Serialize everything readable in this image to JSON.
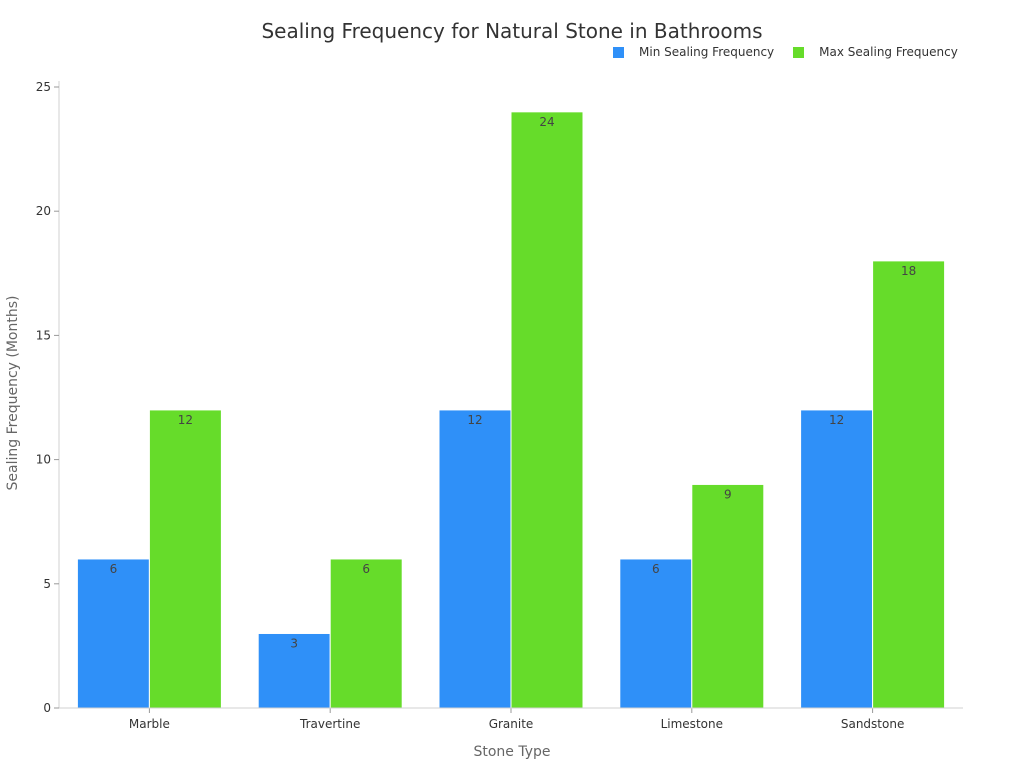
{
  "chart_data": {
    "type": "bar",
    "title": "Sealing Frequency for Natural Stone in Bathrooms",
    "xlabel": "Stone Type",
    "ylabel": "Sealing Frequency (Months)",
    "categories": [
      "Marble",
      "Travertine",
      "Granite",
      "Limestone",
      "Sandstone"
    ],
    "series": [
      {
        "name": "Min Sealing Frequency",
        "color": "#2f90f8",
        "values": [
          6,
          3,
          12,
          6,
          12
        ]
      },
      {
        "name": "Max Sealing Frequency",
        "color": "#66dc2a",
        "values": [
          12,
          6,
          24,
          9,
          18
        ]
      }
    ],
    "ylim": [
      0,
      25
    ],
    "yticks": [
      0,
      5,
      10,
      15,
      20,
      25
    ],
    "grid": false,
    "legend_position": "top-right",
    "data_labels": true
  }
}
